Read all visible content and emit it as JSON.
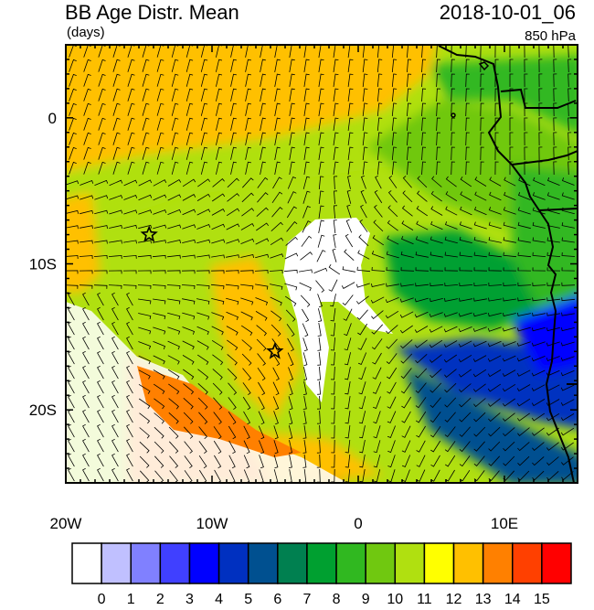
{
  "header": {
    "title": "BB Age Distr. Mean",
    "units": "(days)",
    "date": "2018-10-01_06",
    "level": "850 hPa"
  },
  "axes": {
    "lon_ticks": [
      {
        "value": -20,
        "label": "20W"
      },
      {
        "value": -10,
        "label": "10W"
      },
      {
        "value": 0,
        "label": "0"
      },
      {
        "value": 10,
        "label": "10E"
      }
    ],
    "lat_ticks": [
      {
        "value": 0,
        "label": "0"
      },
      {
        "value": -10,
        "label": "10S"
      },
      {
        "value": -20,
        "label": "20S"
      }
    ],
    "lon_range": [
      -20,
      15
    ],
    "lat_range": [
      -25,
      5
    ]
  },
  "colorbar": {
    "colors": [
      "#ffffff",
      "#c0c0ff",
      "#8080ff",
      "#4040ff",
      "#0000ff",
      "#0030c0",
      "#005090",
      "#008050",
      "#00a030",
      "#30b820",
      "#70c810",
      "#b0e010",
      "#ffff00",
      "#ffc000",
      "#ff8000",
      "#ff4000",
      "#ff0000"
    ],
    "labels": [
      "0",
      "1",
      "2",
      "3",
      "4",
      "5",
      "6",
      "7",
      "8",
      "9",
      "10",
      "11",
      "12",
      "13",
      "14",
      "15"
    ]
  },
  "markers": [
    {
      "name": "star-marker-west",
      "lon": -14.3,
      "lat": -8.0
    },
    {
      "name": "star-marker-central",
      "lon": -5.7,
      "lat": -16.0
    }
  ]
}
